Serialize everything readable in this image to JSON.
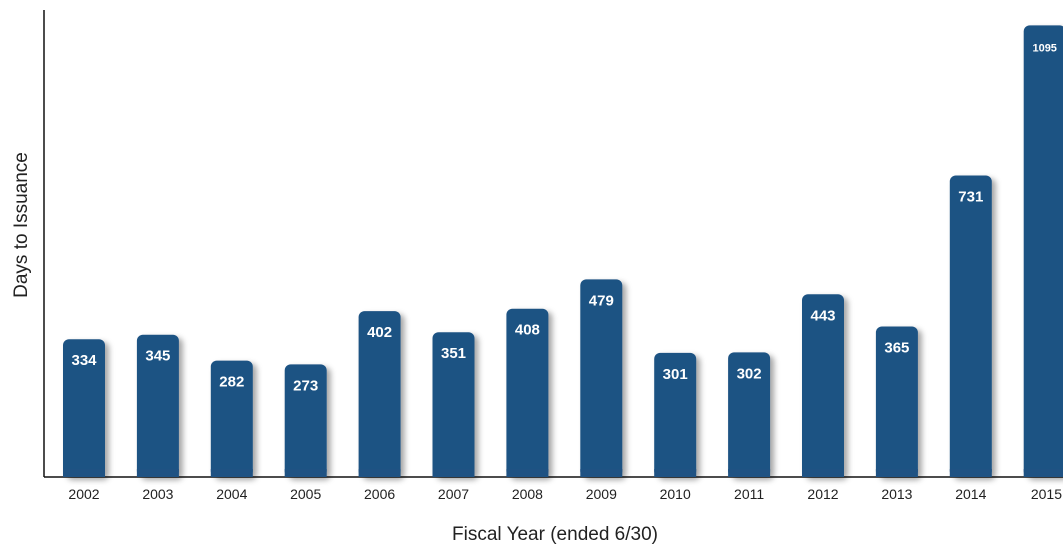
{
  "chart_data": {
    "type": "bar",
    "categories": [
      "2002",
      "2003",
      "2004",
      "2005",
      "2006",
      "2007",
      "2008",
      "2009",
      "2010",
      "2011",
      "2012",
      "2013",
      "2014",
      "2015"
    ],
    "values": [
      334,
      345,
      282,
      273,
      402,
      351,
      408,
      479,
      301,
      302,
      443,
      365,
      731,
      1095
    ],
    "data_labels": [
      "334",
      "345",
      "282",
      "273",
      "402",
      "351",
      "408",
      "479",
      "301",
      "302",
      "443",
      "365",
      "731",
      "1095"
    ],
    "xlabel": "Fiscal Year (ended 6/30)",
    "ylabel": "Days to Issuance",
    "ylim": [
      0,
      1120
    ],
    "grid": false,
    "bar_color": "#1f5283"
  }
}
